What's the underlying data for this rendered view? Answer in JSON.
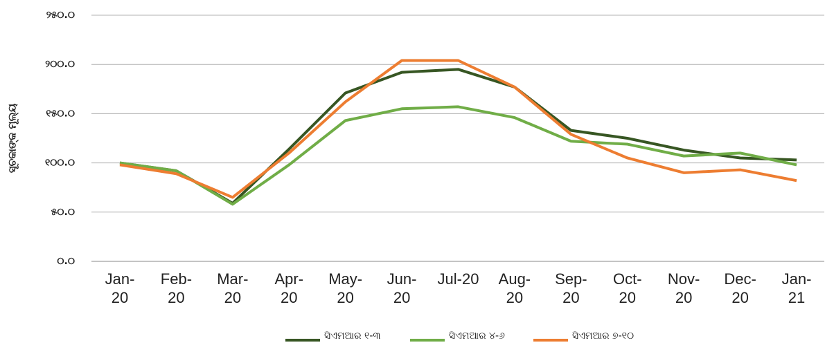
{
  "chart_data": {
    "type": "line",
    "y_label": "ସୂଚକାଙ୍କ ମୂଲ୍ୟ",
    "categories": [
      "Jan-20",
      "Feb-20",
      "Mar-20",
      "Apr-20",
      "May-20",
      "Jun-20",
      "Jul-20",
      "Aug-20",
      "Sep-20",
      "Oct-20",
      "Nov-20",
      "Dec-20",
      "Jan-21"
    ],
    "series": [
      {
        "name": "ସିଏମଆର ୧-୩",
        "color": "#375623",
        "values": [
          100,
          92,
          59,
          114,
          171,
          192,
          195,
          177,
          133,
          125,
          113,
          105,
          103
        ]
      },
      {
        "name": "ସିଏମଆର ୪-୬",
        "color": "#70ad47",
        "values": [
          100,
          92,
          58,
          98,
          143,
          155,
          157,
          146,
          122,
          119,
          107,
          110,
          98
        ]
      },
      {
        "name": "ସିଏମଆର ୭-୧୦",
        "color": "#ed7d31",
        "values": [
          98,
          89,
          65,
          110,
          162,
          204,
          204,
          177,
          129,
          105,
          90,
          93,
          82
        ]
      }
    ],
    "ylim": [
      0,
      250
    ],
    "yticks": [
      {
        "value": 0,
        "label": "୦.୦"
      },
      {
        "value": 50,
        "label": "୫୦.୦"
      },
      {
        "value": 100,
        "label": "୧୦୦.୦"
      },
      {
        "value": 150,
        "label": "୧୫୦.୦"
      },
      {
        "value": 200,
        "label": "୨୦୦.୦"
      },
      {
        "value": 250,
        "label": "୨୫୦.୦"
      }
    ],
    "grid": true
  }
}
